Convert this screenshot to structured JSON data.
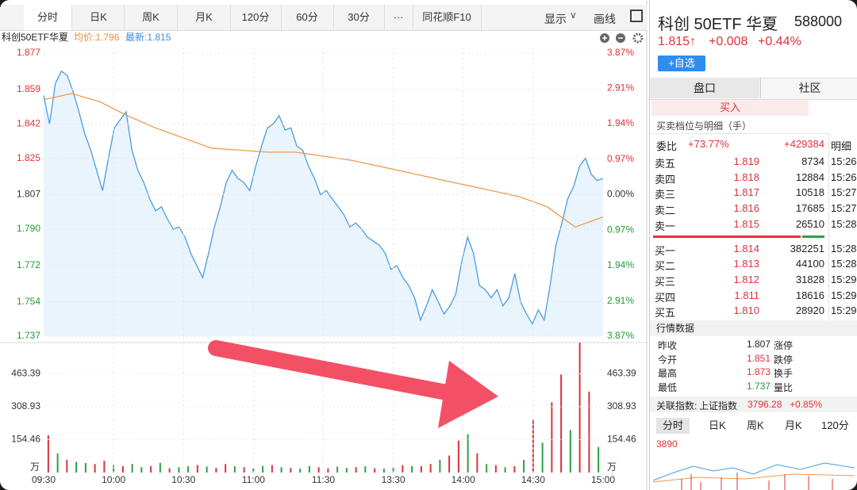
{
  "toolbar": {
    "tabs": [
      "分时",
      "日K",
      "周K",
      "月K",
      "120分",
      "60分",
      "30分",
      "···",
      "同花顺F10"
    ],
    "display": "显示",
    "draw": "画线"
  },
  "chart_data": {
    "type": "line",
    "title": "科创50ETF华夏",
    "avg_label": "均价:1.796",
    "latest_label": "最新:1.815",
    "time_labels": [
      "09:30",
      "10:00",
      "10:30",
      "11:00",
      "11:30",
      "13:30",
      "14:00",
      "14:30",
      "15:00"
    ],
    "ylim": [
      1.737,
      1.877
    ],
    "yticks": [
      1.737,
      1.754,
      1.772,
      {
        "value": 1.79,
        "label": "1.790"
      },
      1.807,
      1.825,
      1.842,
      1.859,
      1.877
    ],
    "y2lim": [
      -3.87,
      3.87
    ],
    "y2ticks": [
      {
        "value": -3.87,
        "label": "3.87%"
      },
      {
        "value": -2.91,
        "label": "2.91%"
      },
      {
        "value": -1.94,
        "label": "1.94%"
      },
      {
        "value": -0.97,
        "label": "0.97%"
      },
      {
        "value": 0,
        "label": "0.00%"
      },
      {
        "value": 0.97,
        "label": "0.97%"
      },
      {
        "value": 1.94,
        "label": "1.94%"
      },
      {
        "value": 2.91,
        "label": "2.91%"
      },
      {
        "value": 3.87,
        "label": "3.87%"
      }
    ],
    "grid": true,
    "series": [
      {
        "color": "#4a9be0",
        "fill": "#eaf4fd",
        "values": [
          1.856,
          1.842,
          1.862,
          1.868,
          1.866,
          1.858,
          1.848,
          1.837,
          1.829,
          1.819,
          1.809,
          1.825,
          1.84,
          1.844,
          1.848,
          1.829,
          1.819,
          1.813,
          1.805,
          1.799,
          1.801,
          1.795,
          1.79,
          1.791,
          1.786,
          1.778,
          1.772,
          1.766,
          1.778,
          1.791,
          1.801,
          1.813,
          1.819,
          1.815,
          1.813,
          1.809,
          1.821,
          1.831,
          1.84,
          1.842,
          1.846,
          1.839,
          1.84,
          1.831,
          1.829,
          1.821,
          1.815,
          1.807,
          1.809,
          1.805,
          1.801,
          1.797,
          1.791,
          1.793,
          1.79,
          1.786,
          1.784,
          1.782,
          1.778,
          1.77,
          1.772,
          1.766,
          1.762,
          1.756,
          1.745,
          1.752,
          1.76,
          1.754,
          1.748,
          1.752,
          1.758,
          1.774,
          1.786,
          1.778,
          1.762,
          1.76,
          1.756,
          1.76,
          1.752,
          1.756,
          1.768,
          1.754,
          1.748,
          1.743,
          1.75,
          1.745,
          1.762,
          1.782,
          1.793,
          1.805,
          1.811,
          1.821,
          1.825,
          1.817,
          1.814,
          1.815
        ]
      },
      {
        "color": "#eb9a4e",
        "values": [
          1.854,
          1.857,
          1.853,
          1.846,
          1.84,
          1.835,
          1.83,
          1.829,
          1.828,
          1.828,
          1.826,
          1.824,
          1.821,
          1.818,
          1.815,
          1.812,
          1.809,
          1.806,
          1.801,
          1.791,
          1.796
        ]
      }
    ],
    "volume": {
      "unit": "万",
      "ylim": [
        0,
        617.85
      ],
      "yticks": [
        154.46,
        308.93,
        463.39
      ],
      "values": [
        175,
        90,
        60,
        50,
        45,
        40,
        55,
        35,
        30,
        40,
        25,
        30,
        45,
        20,
        25,
        30,
        35,
        28,
        22,
        40,
        30,
        25,
        20,
        30,
        35,
        25,
        22,
        18,
        30,
        25,
        20,
        28,
        22,
        25,
        30,
        20,
        18,
        25,
        35,
        30,
        30,
        40,
        60,
        80,
        150,
        180,
        90,
        40,
        35,
        25,
        30,
        60,
        250,
        140,
        330,
        460,
        200,
        610,
        380,
        120
      ],
      "colors": [
        "#d9343a",
        "#2ea043",
        "#d9343a",
        "#2ea043",
        "#2ea043",
        "#d9343a",
        "#d9343a",
        "#2ea043",
        "#d9343a",
        "#2ea043",
        "#2ea043",
        "#d9343a",
        "#2ea043",
        "#d9343a",
        "#2ea043",
        "#2ea043",
        "#d9343a",
        "#2ea043",
        "#d9343a",
        "#d9343a",
        "#2ea043",
        "#d9343a",
        "#2ea043",
        "#2ea043",
        "#d9343a",
        "#2ea043",
        "#d9343a",
        "#2ea043",
        "#2ea043",
        "#d9343a",
        "#d9343a",
        "#2ea043",
        "#2ea043",
        "#d9343a",
        "#2ea043",
        "#d9343a",
        "#2ea043",
        "#2ea043",
        "#d9343a",
        "#2ea043",
        "#d9343a",
        "#d9343a",
        "#2ea043",
        "#d9343a",
        "#d9343a",
        "#2ea043",
        "#d9343a",
        "#2ea043",
        "#d9343a",
        "#2ea043",
        "#d9343a",
        "#2ea043",
        "#d9343a",
        "#2ea043",
        "#d9343a",
        "#d9343a",
        "#2ea043",
        "#d9343a",
        "#d9343a",
        "#2ea043"
      ]
    }
  },
  "quote": {
    "name": "科创 50ETF 华夏",
    "code": "588000",
    "price": "1.815↑",
    "change": "+0.008",
    "pct": "+0.44%",
    "add": "+自选",
    "tabs": [
      "盘口",
      "社区"
    ],
    "buy": "买入"
  },
  "order_book": {
    "title": "买卖档位与明细（手）",
    "ratio_label": "委比",
    "ratio": "+73.77%",
    "diff": "+429384",
    "detail_label": "明细",
    "sell": [
      [
        "卖五",
        "1.819",
        "8734"
      ],
      [
        "卖四",
        "1.818",
        "12884"
      ],
      [
        "卖三",
        "1.817",
        "10518"
      ],
      [
        "卖二",
        "1.816",
        "17685"
      ],
      [
        "卖一",
        "1.815",
        "26510"
      ]
    ],
    "buy": [
      [
        "买一",
        "1.814",
        "382251"
      ],
      [
        "买二",
        "1.813",
        "44100"
      ],
      [
        "买三",
        "1.812",
        "31828"
      ],
      [
        "买四",
        "1.811",
        "18616"
      ],
      [
        "买五",
        "1.810",
        "28920"
      ]
    ],
    "times": [
      "15:26",
      "15:26",
      "15:27",
      "15:27",
      "15:28",
      "15:28",
      "15:28",
      "15:29",
      "15:29",
      "15:29"
    ]
  },
  "market": {
    "title": "行情数据",
    "rows": [
      [
        "昨收",
        "1.807",
        "涨停"
      ],
      [
        "今开",
        "1.851",
        "跌停"
      ],
      [
        "最高",
        "1.873",
        "换手"
      ],
      [
        "最低",
        "1.737",
        "量比"
      ]
    ]
  },
  "related": {
    "label": "关联指数:",
    "index": "上证指数",
    "value": "3796.28",
    "change": "+0.85%"
  },
  "mini": {
    "tabs": [
      "分时",
      "日K",
      "周K",
      "月K",
      "120分"
    ],
    "label": "3890"
  }
}
